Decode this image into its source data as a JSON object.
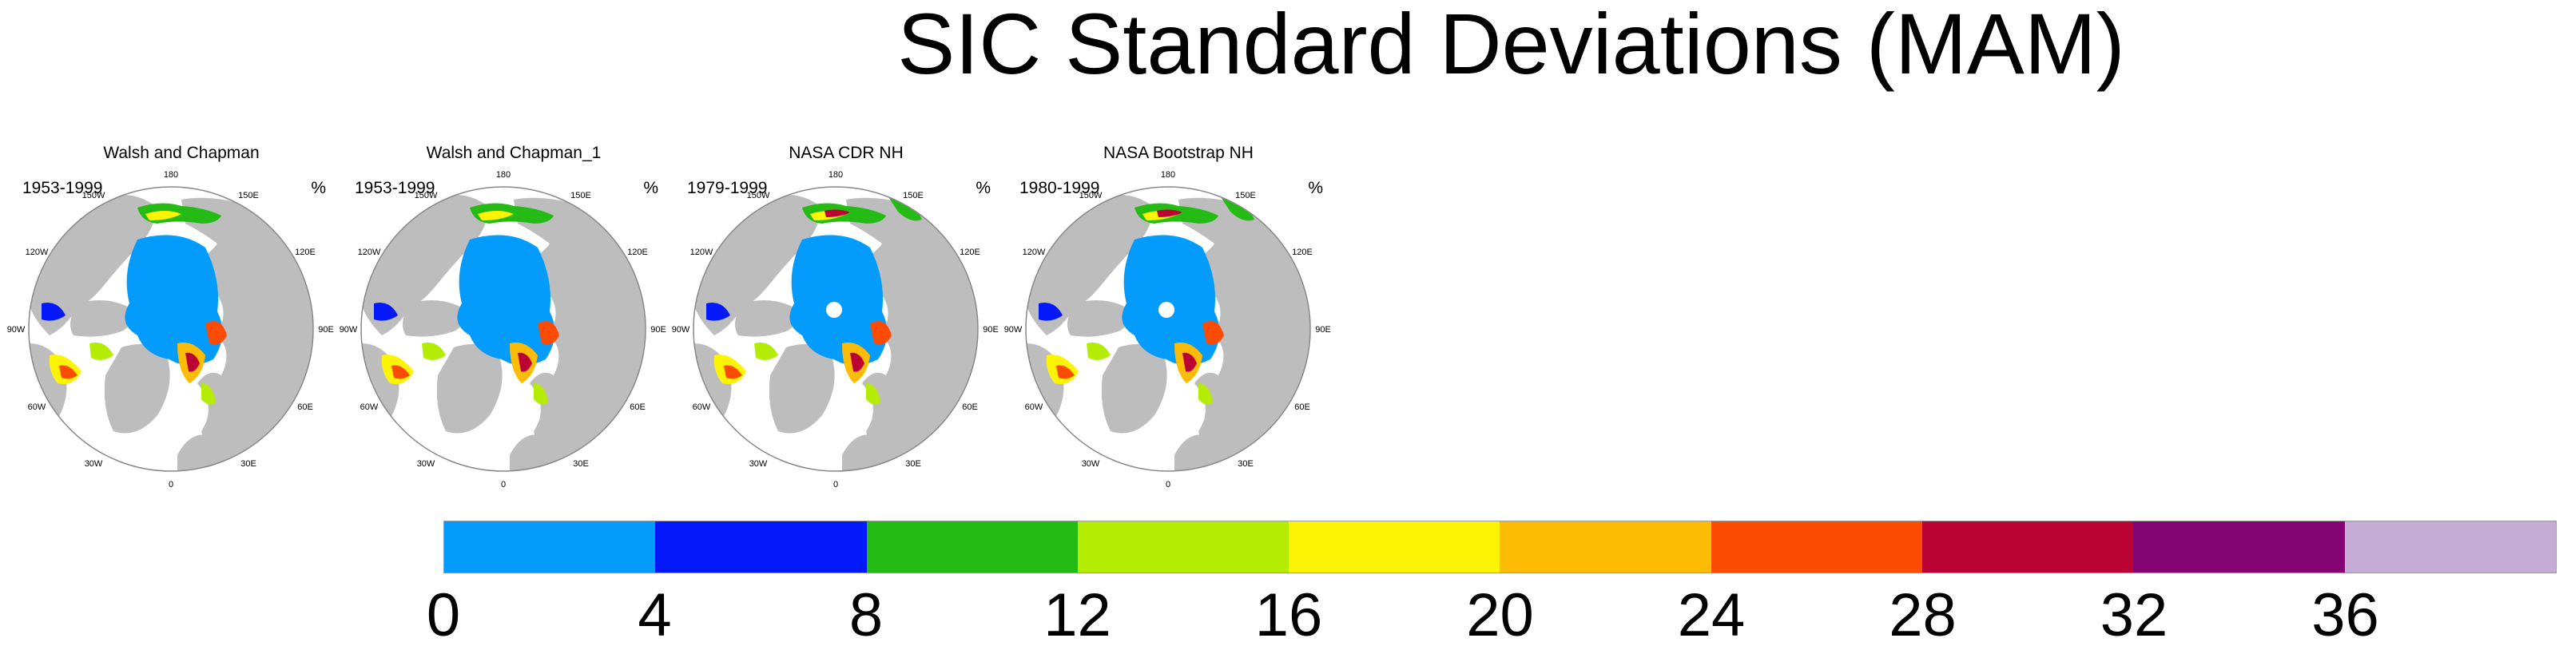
{
  "title": "SIC Standard Deviations (MAM)",
  "panels": [
    {
      "title": "Walsh and Chapman",
      "years": "1953-1999",
      "units": "%",
      "pole_hole": false
    },
    {
      "title": "Walsh and Chapman_1",
      "years": "1953-1999",
      "units": "%",
      "pole_hole": false
    },
    {
      "title": "NASA CDR NH",
      "years": "1979-1999",
      "units": "%",
      "pole_hole": true
    },
    {
      "title": "NASA Bootstrap NH",
      "years": "1980-1999",
      "units": "%",
      "pole_hole": true
    }
  ],
  "lon_labels": [
    "180",
    "150E",
    "120E",
    "90E",
    "60E",
    "30E",
    "0",
    "30W",
    "60W",
    "90W",
    "120W",
    "150W"
  ],
  "colorbar": {
    "ticks": [
      "0",
      "4",
      "8",
      "12",
      "16",
      "20",
      "24",
      "28",
      "32",
      "36"
    ],
    "colors": [
      "#049cfc",
      "#0418fc",
      "#24bc14",
      "#b4ec04",
      "#fcf404",
      "#fcbc04",
      "#fc4c04",
      "#bc0434",
      "#840474",
      "#c4acd4"
    ]
  },
  "colors": {
    "land": "#bdbdbd",
    "ocean": "#ffffff",
    "grid": "#888888"
  }
}
